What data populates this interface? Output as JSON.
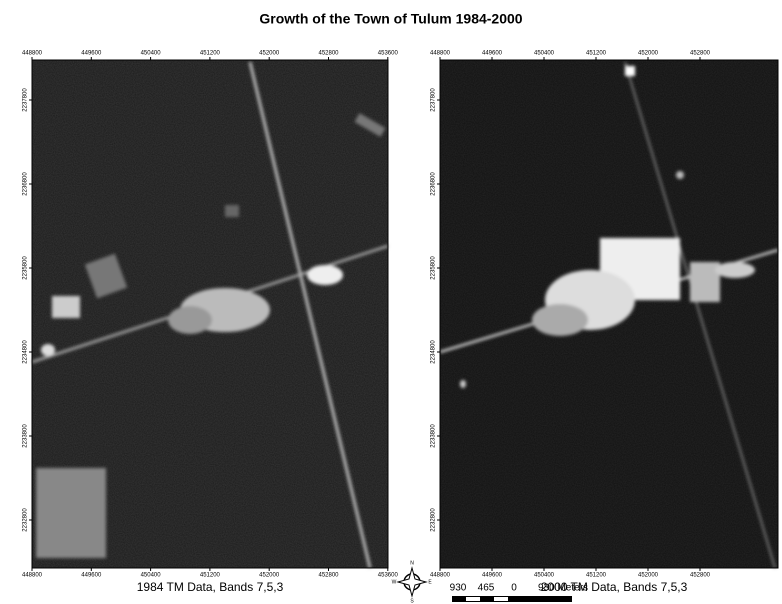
{
  "title": "Growth of the Town of Tulum 1984-2000",
  "panels": [
    {
      "caption": "1984 TM Data, Bands 7,5,3",
      "top_ticks": [
        "448800",
        "449600",
        "450400",
        "451200",
        "452000",
        "452800",
        "453600"
      ],
      "bottom_ticks": [
        "448800",
        "449600",
        "450400",
        "451200",
        "452000",
        "452800",
        "453600"
      ],
      "left_ticks": [
        "2237800",
        "2236800",
        "2235800",
        "2234800",
        "2233800",
        "2232800"
      ]
    },
    {
      "caption": "2000 TM Data, Bands 7,5,3",
      "top_ticks": [
        "448800",
        "449600",
        "450400",
        "451200",
        "452000",
        "452800"
      ],
      "bottom_ticks": [
        "448800",
        "449600",
        "450400",
        "451200",
        "452000",
        "452800"
      ],
      "left_ticks": [
        "2237800",
        "2236800",
        "2235800",
        "2234800",
        "2233800",
        "2232800"
      ]
    }
  ],
  "compass": {
    "n": "N",
    "s": "S",
    "e": "E",
    "w": "W"
  },
  "scale_bar": {
    "labels": [
      "930",
      "465",
      "0",
      "930 Meters"
    ]
  }
}
